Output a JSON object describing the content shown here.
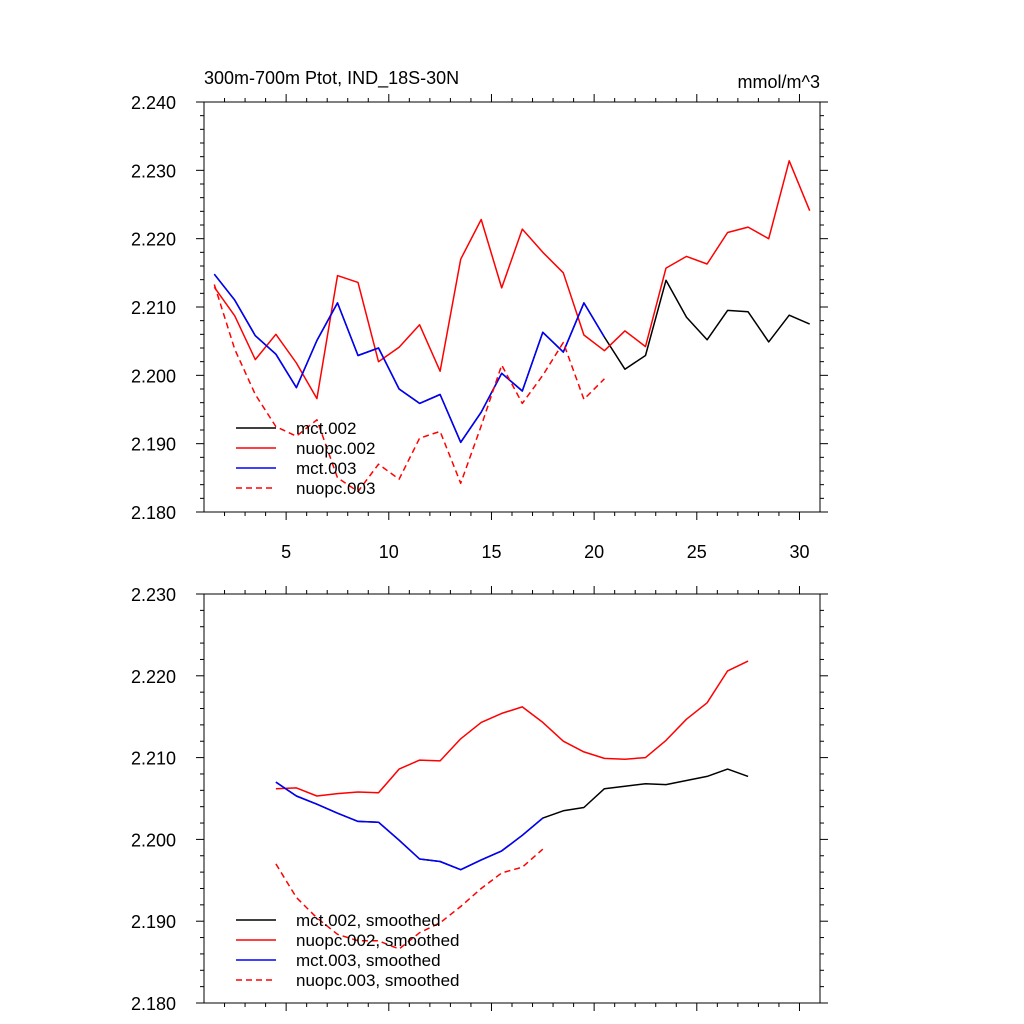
{
  "chart_data": [
    {
      "type": "line",
      "title": "300m-700m Ptot, IND_18S-30N",
      "units": "mmol/m^3",
      "xlabel": "",
      "ylabel": "",
      "xlim": [
        1,
        31
      ],
      "ylim": [
        2.18,
        2.24
      ],
      "xticks": [
        5,
        10,
        15,
        20,
        25,
        30
      ],
      "xtick_labels": [
        "5",
        "10",
        "15",
        "20",
        "25",
        "30"
      ],
      "yticks": [
        2.18,
        2.19,
        2.2,
        2.21,
        2.22,
        2.23,
        2.24
      ],
      "ytick_labels": [
        "2.180",
        "2.190",
        "2.200",
        "2.210",
        "2.220",
        "2.230",
        "2.240"
      ],
      "legend_position": "bottom-left",
      "series": [
        {
          "name": "mct.002",
          "color": "#000000",
          "dash": "solid",
          "x": [
            1.5,
            2.5,
            3.5,
            4.5,
            5.5,
            6.5,
            7.5,
            8.5,
            9.5,
            10.5,
            11.5,
            12.5,
            13.5,
            14.5,
            15.5,
            16.5,
            17.5,
            18.5,
            19.5,
            20.5,
            21.5,
            22.5,
            23.5,
            24.5,
            25.5,
            26.5,
            27.5,
            28.5,
            29.5,
            30.5
          ],
          "values": [
            2.2148,
            2.211,
            2.2058,
            2.2031,
            2.1982,
            2.2051,
            2.2106,
            2.2029,
            2.204,
            2.198,
            2.1959,
            2.1972,
            2.1902,
            2.1946,
            2.2003,
            2.1977,
            2.2063,
            2.2034,
            2.2106,
            2.2056,
            2.2009,
            2.2029,
            2.2139,
            2.2085,
            2.2052,
            2.2095,
            2.2093,
            2.2049,
            2.2088,
            2.2075
          ]
        },
        {
          "name": "nuopc.002",
          "color": "#ff0000",
          "dash": "solid",
          "x": [
            1.5,
            2.5,
            3.5,
            4.5,
            5.5,
            6.5,
            7.5,
            8.5,
            9.5,
            10.5,
            11.5,
            12.5,
            13.5,
            14.5,
            15.5,
            16.5,
            17.5,
            18.5,
            19.5,
            20.5,
            21.5,
            22.5,
            23.5,
            24.5,
            25.5,
            26.5,
            27.5,
            28.5,
            29.5,
            30.5
          ],
          "values": [
            2.2129,
            2.2087,
            2.2023,
            2.206,
            2.2018,
            2.1966,
            2.2146,
            2.2136,
            2.202,
            2.2041,
            2.2074,
            2.2006,
            2.217,
            2.2228,
            2.2128,
            2.2214,
            2.218,
            2.215,
            2.2059,
            2.2036,
            2.2065,
            2.2042,
            2.2157,
            2.2174,
            2.2163,
            2.2209,
            2.2217,
            2.22,
            2.2314,
            2.2241
          ]
        },
        {
          "name": "mct.003",
          "color": "#0000ff",
          "dash": "solid",
          "x": [
            1.5,
            2.5,
            3.5,
            4.5,
            5.5,
            6.5,
            7.5,
            8.5,
            9.5,
            10.5,
            11.5,
            12.5,
            13.5,
            14.5,
            15.5,
            16.5,
            17.5,
            18.5,
            19.5,
            20.5
          ],
          "values": [
            2.2148,
            2.211,
            2.2058,
            2.2031,
            2.1982,
            2.2051,
            2.2106,
            2.2029,
            2.204,
            2.198,
            2.1959,
            2.1972,
            2.1902,
            2.1946,
            2.2003,
            2.1977,
            2.2063,
            2.2034,
            2.2106,
            2.2056
          ]
        },
        {
          "name": "nuopc.003",
          "color": "#ff0000",
          "dash": "dashed",
          "x": [
            1.5,
            2.5,
            3.5,
            4.5,
            5.5,
            6.5,
            7.5,
            8.5,
            9.5,
            10.5,
            11.5,
            12.5,
            13.5,
            14.5,
            15.5,
            16.5,
            17.5,
            18.5,
            19.5,
            20.5
          ],
          "values": [
            2.2133,
            2.2038,
            2.1972,
            2.1925,
            2.1911,
            2.1935,
            2.185,
            2.183,
            2.187,
            2.1848,
            2.1908,
            2.1918,
            2.1842,
            2.1926,
            2.2015,
            2.1959,
            2.2,
            2.2048,
            2.1965,
            2.1995
          ]
        }
      ]
    },
    {
      "type": "line",
      "title": "",
      "xlabel": "",
      "ylabel": "",
      "xlim": [
        1,
        31
      ],
      "ylim": [
        2.18,
        2.23
      ],
      "xticks": [
        5,
        10,
        15,
        20,
        25,
        30
      ],
      "xtick_labels": [],
      "yticks": [
        2.18,
        2.19,
        2.2,
        2.21,
        2.22,
        2.23
      ],
      "ytick_labels": [
        "2.180",
        "2.190",
        "2.200",
        "2.210",
        "2.220",
        "2.230"
      ],
      "legend_position": "bottom-left",
      "series": [
        {
          "name": "mct.002, smoothed",
          "color": "#000000",
          "dash": "solid",
          "x": [
            4.5,
            5.5,
            6.5,
            7.5,
            8.5,
            9.5,
            10.5,
            11.5,
            12.5,
            13.5,
            14.5,
            15.5,
            16.5,
            17.5,
            18.5,
            19.5,
            20.5,
            21.5,
            22.5,
            23.5,
            24.5,
            25.5,
            26.5,
            27.5
          ],
          "values": [
            2.207,
            2.2053,
            2.2043,
            2.2032,
            2.2022,
            2.2021,
            2.1999,
            2.1976,
            2.1973,
            2.1963,
            2.1975,
            2.1986,
            2.2005,
            2.2026,
            2.2035,
            2.2039,
            2.2062,
            2.2065,
            2.2068,
            2.2067,
            2.2072,
            2.2077,
            2.2086,
            2.2077
          ]
        },
        {
          "name": "nuopc.002, smoothed",
          "color": "#ff0000",
          "dash": "solid",
          "x": [
            4.5,
            5.5,
            6.5,
            7.5,
            8.5,
            9.5,
            10.5,
            11.5,
            12.5,
            13.5,
            14.5,
            15.5,
            16.5,
            17.5,
            18.5,
            19.5,
            20.5,
            21.5,
            22.5,
            23.5,
            24.5,
            25.5,
            26.5,
            27.5
          ],
          "values": [
            2.2062,
            2.2063,
            2.2053,
            2.2056,
            2.2058,
            2.2057,
            2.2086,
            2.2097,
            2.2096,
            2.2123,
            2.2143,
            2.2154,
            2.2162,
            2.2143,
            2.212,
            2.2107,
            2.2099,
            2.2098,
            2.21,
            2.2121,
            2.2147,
            2.2167,
            2.2206,
            2.2218
          ]
        },
        {
          "name": "mct.003, smoothed",
          "color": "#0000ff",
          "dash": "solid",
          "x": [
            4.5,
            5.5,
            6.5,
            7.5,
            8.5,
            9.5,
            10.5,
            11.5,
            12.5,
            13.5,
            14.5,
            15.5,
            16.5,
            17.5
          ],
          "values": [
            2.207,
            2.2053,
            2.2043,
            2.2032,
            2.2022,
            2.2021,
            2.1999,
            2.1976,
            2.1973,
            2.1963,
            2.1975,
            2.1986,
            2.2005,
            2.2026
          ]
        },
        {
          "name": "nuopc.003, smoothed",
          "color": "#ff0000",
          "dash": "dashed",
          "x": [
            4.5,
            5.5,
            6.5,
            7.5,
            8.5,
            9.5,
            10.5,
            11.5,
            12.5,
            13.5,
            14.5,
            15.5,
            16.5,
            17.5
          ],
          "values": [
            2.197,
            2.1929,
            2.1904,
            2.1884,
            2.1876,
            2.1876,
            2.1866,
            2.1886,
            2.1898,
            2.1918,
            2.194,
            2.1959,
            2.1966,
            2.1988
          ]
        }
      ]
    }
  ]
}
